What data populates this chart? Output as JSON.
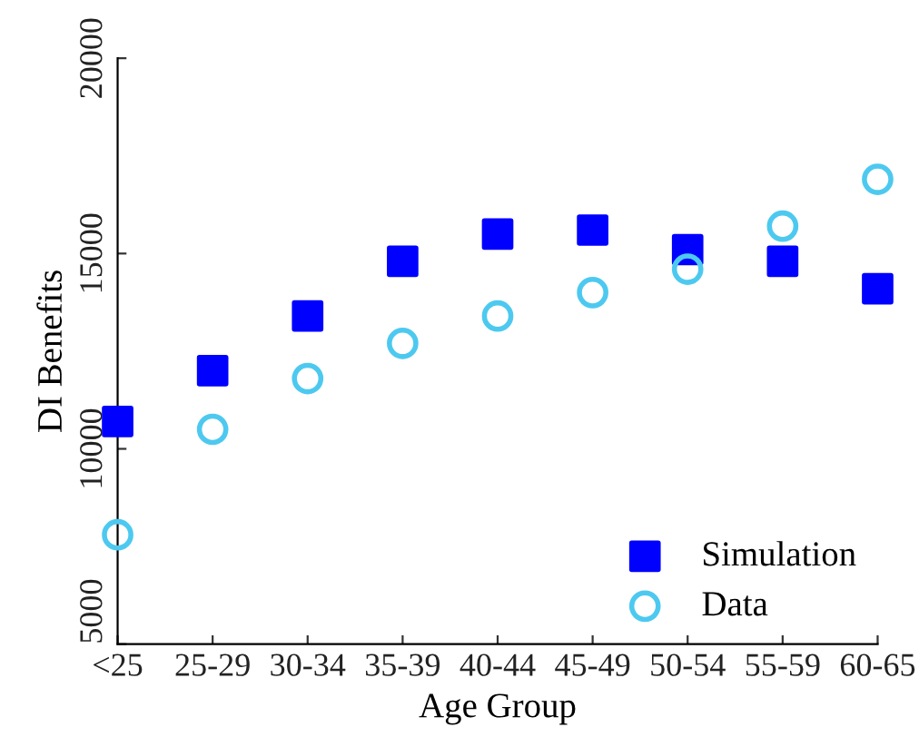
{
  "chart_data": {
    "type": "scatter",
    "xlabel": "Age Group",
    "ylabel": "DI Benefits",
    "categories": [
      "<25",
      "25-29",
      "30-34",
      "35-39",
      "40-44",
      "45-49",
      "50-54",
      "55-59",
      "60-65"
    ],
    "series": [
      {
        "name": "Simulation",
        "color": "#0000ff",
        "marker": "square",
        "values": [
          10700,
          12000,
          13400,
          14800,
          15500,
          15600,
          15100,
          14800,
          14100
        ]
      },
      {
        "name": "Data",
        "color": "#4dc9f0",
        "marker": "circle",
        "values": [
          7800,
          10500,
          11800,
          12700,
          13400,
          14000,
          14600,
          15700,
          16900
        ]
      }
    ],
    "ylim": [
      5000,
      20000
    ],
    "yticks": [
      5000,
      10000,
      15000,
      20000
    ],
    "grid": false,
    "legend": "bottom right"
  }
}
